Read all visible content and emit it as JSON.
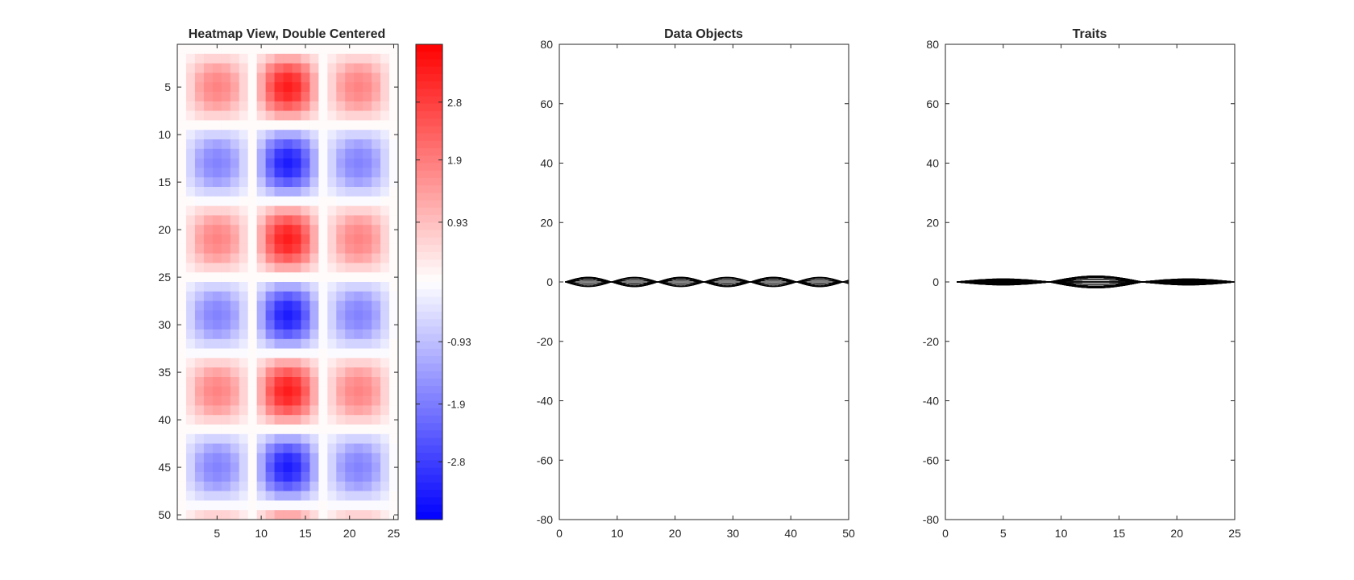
{
  "chart_data": [
    {
      "type": "heatmap",
      "title": "Heatmap View, Double Centered",
      "rows": 50,
      "cols": 25,
      "x_ticks": [
        5,
        10,
        15,
        20,
        25
      ],
      "y_ticks": [
        5,
        10,
        15,
        20,
        25,
        30,
        35,
        40,
        45,
        50
      ],
      "y_reversed": true,
      "pattern": {
        "row_period": 16,
        "row_phase_center": 5,
        "col_period": 16,
        "col_phase_center": 5,
        "col_peak_amplitudes": [
          1.8,
          3.3,
          1.8
        ]
      },
      "colormap": {
        "low": "#0000ff",
        "mid": "#ffffff",
        "high": "#ff0000",
        "levels": 64
      },
      "colorbar": {
        "range": [
          -3.7,
          3.7
        ],
        "ticks": [
          2.8,
          1.9,
          0.93,
          -0.93,
          -1.9,
          -2.8
        ],
        "tick_labels": [
          "2.8",
          "1.9",
          "0.93",
          "-0.93",
          "-1.9",
          "-2.8"
        ]
      }
    },
    {
      "type": "line",
      "title": "Data Objects",
      "xlim": [
        0,
        50
      ],
      "ylim": [
        -80,
        80
      ],
      "x_ticks": [
        0,
        10,
        20,
        30,
        40,
        50
      ],
      "y_ticks": [
        -80,
        -60,
        -40,
        -20,
        0,
        20,
        40,
        60,
        80
      ],
      "x_range": [
        1,
        50
      ],
      "line_count": 25,
      "wave_period": 16,
      "wave_phase_center": 5,
      "max_amplitude": 1.6,
      "line_color": "#000000"
    },
    {
      "type": "line",
      "title": "Traits",
      "xlim": [
        0,
        25
      ],
      "ylim": [
        -80,
        80
      ],
      "x_ticks": [
        0,
        5,
        10,
        15,
        20,
        25
      ],
      "y_ticks": [
        -80,
        -60,
        -40,
        -20,
        0,
        20,
        40,
        60,
        80
      ],
      "x_range": [
        1,
        25
      ],
      "line_count": 50,
      "wave_period": 16,
      "wave_phase_center": 5,
      "col_peak_amplitudes": [
        1.0,
        2.0,
        1.0
      ],
      "line_color": "#000000"
    }
  ]
}
